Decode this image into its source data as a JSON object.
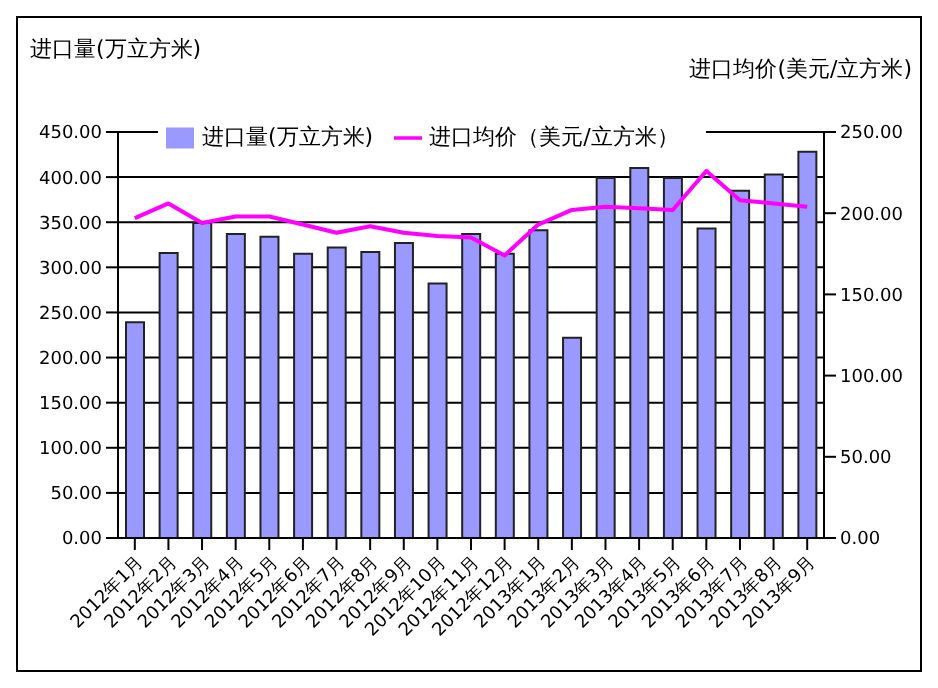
{
  "chart_data": {
    "type": "bar",
    "ylabel": "进口量(万立方米)",
    "y2label": "进口均价(美元/立方米)",
    "categories": [
      "2012年1月",
      "2012年2月",
      "2012年3月",
      "2012年4月",
      "2012年5月",
      "2012年6月",
      "2012年7月",
      "2012年8月",
      "2012年9月",
      "2012年10月",
      "2012年11月",
      "2012年12月",
      "2013年1月",
      "2013年2月",
      "2013年3月",
      "2013年4月",
      "2013年5月",
      "2013年6月",
      "2013年7月",
      "2013年8月",
      "2013年9月"
    ],
    "series": [
      {
        "name": "进口量(万立方米)",
        "color": "#9999ff",
        "values": [
          239,
          316,
          349,
          337,
          334,
          315,
          322,
          317,
          327,
          282,
          337,
          315,
          341,
          222,
          399,
          410,
          399,
          343,
          385,
          403,
          428
        ]
      },
      {
        "name": "进口均价（美元/立方米）",
        "type": "line",
        "axis": "y2",
        "color": "#ff00ff",
        "values": [
          197,
          206,
          194,
          198,
          198,
          193,
          188,
          192,
          188,
          186,
          185,
          174,
          193,
          202,
          204,
          203,
          202,
          226,
          208,
          206,
          204
        ]
      }
    ],
    "ylim": [
      0,
      450
    ],
    "yticks": [
      {
        "value": 0,
        "label": "0.00"
      },
      {
        "value": 50,
        "label": "50.00"
      },
      {
        "value": 100,
        "label": "100.00"
      },
      {
        "value": 150,
        "label": "150.00"
      },
      {
        "value": 200,
        "label": "200.00"
      },
      {
        "value": 250,
        "label": "250.00"
      },
      {
        "value": 300,
        "label": "300.00"
      },
      {
        "value": 350,
        "label": "350.00"
      },
      {
        "value": 400,
        "label": "400.00"
      },
      {
        "value": 450,
        "label": "450.00"
      }
    ],
    "y2lim": [
      0,
      250
    ],
    "y2ticks": [
      {
        "value": 0,
        "label": "0.00"
      },
      {
        "value": 50,
        "label": "50.00"
      },
      {
        "value": 100,
        "label": "100.00"
      },
      {
        "value": 150,
        "label": "150.00"
      },
      {
        "value": 200,
        "label": "200.00"
      },
      {
        "value": 250,
        "label": "250.00"
      }
    ],
    "grid": "y",
    "legend": "top left",
    "marker": "none",
    "line_style": "solid"
  }
}
